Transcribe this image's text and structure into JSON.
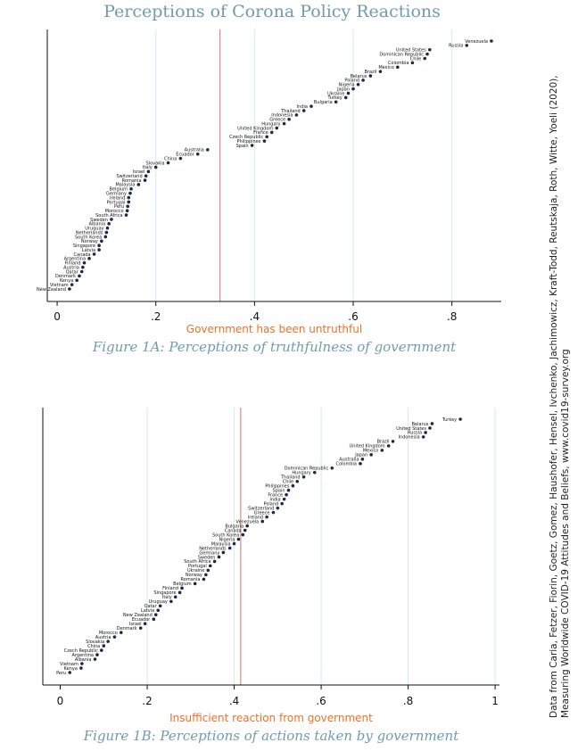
{
  "title": "Perceptions of Corona Policy Reactions",
  "source_line1": "Data from Caria, Fetzer, Fiorin, Goetz, Gomez, Haushofer, Hensel, Ivchenko, Jachimowicz, Kraft-Todd, Reutskaja, Roth, Witte, Yoeli (2020),",
  "source_line2": "Measuring Worldwide COVID-19 Attitudes and Beliefs, www.covid19-survey.org",
  "chart_data": [
    {
      "type": "scatter",
      "caption": "Figure 1A: Perceptions of truthfulness of government",
      "xlabel": "Government has been untruthful",
      "xlim": [
        -0.02,
        0.9
      ],
      "xticks": [
        0,
        0.2,
        0.4,
        0.6,
        0.8
      ],
      "xtick_labels": [
        "0",
        ".2",
        ".4",
        ".6",
        ".8"
      ],
      "reference_line": 0.33,
      "grid": "vertical",
      "points": [
        {
          "label": "Venezuela",
          "x": 0.88
        },
        {
          "label": "Russia",
          "x": 0.83
        },
        {
          "label": "United States",
          "x": 0.755
        },
        {
          "label": "Dominican Republic",
          "x": 0.75
        },
        {
          "label": "Chile",
          "x": 0.745
        },
        {
          "label": "Colombia",
          "x": 0.72
        },
        {
          "label": "Mexico",
          "x": 0.69
        },
        {
          "label": "Brazil",
          "x": 0.655
        },
        {
          "label": "Belarus",
          "x": 0.635
        },
        {
          "label": "Poland",
          "x": 0.62
        },
        {
          "label": "Nigeria",
          "x": 0.61
        },
        {
          "label": "Japan",
          "x": 0.6
        },
        {
          "label": "Ukraine",
          "x": 0.59
        },
        {
          "label": "Turkey",
          "x": 0.585
        },
        {
          "label": "Bulgaria",
          "x": 0.565
        },
        {
          "label": "India",
          "x": 0.515
        },
        {
          "label": "Thailand",
          "x": 0.5
        },
        {
          "label": "Indonesia",
          "x": 0.485
        },
        {
          "label": "Greece",
          "x": 0.47
        },
        {
          "label": "Hungary",
          "x": 0.46
        },
        {
          "label": "United Kingdom",
          "x": 0.445
        },
        {
          "label": "France",
          "x": 0.435
        },
        {
          "label": "Czech Republic",
          "x": 0.425
        },
        {
          "label": "Philippines",
          "x": 0.42
        },
        {
          "label": "Spain",
          "x": 0.395
        },
        {
          "label": "Australia",
          "x": 0.305
        },
        {
          "label": "Ecuador",
          "x": 0.285
        },
        {
          "label": "China",
          "x": 0.25
        },
        {
          "label": "Slovakia",
          "x": 0.225
        },
        {
          "label": "Italy",
          "x": 0.2
        },
        {
          "label": "Israel",
          "x": 0.185
        },
        {
          "label": "Switzerland",
          "x": 0.18
        },
        {
          "label": "Romania",
          "x": 0.178
        },
        {
          "label": "Malaysia",
          "x": 0.165
        },
        {
          "label": "Belgium",
          "x": 0.15
        },
        {
          "label": "Germany",
          "x": 0.148
        },
        {
          "label": "Ireland",
          "x": 0.145
        },
        {
          "label": "Portugal",
          "x": 0.145
        },
        {
          "label": "Peru",
          "x": 0.143
        },
        {
          "label": "Morocco",
          "x": 0.142
        },
        {
          "label": "South Africa",
          "x": 0.14
        },
        {
          "label": "Sweden",
          "x": 0.11
        },
        {
          "label": "Albania",
          "x": 0.105
        },
        {
          "label": "Uruguay",
          "x": 0.102
        },
        {
          "label": "Netherlands",
          "x": 0.1
        },
        {
          "label": "South Korea",
          "x": 0.098
        },
        {
          "label": "Norway",
          "x": 0.09
        },
        {
          "label": "Singapore",
          "x": 0.085
        },
        {
          "label": "Latvia",
          "x": 0.085
        },
        {
          "label": "Canada",
          "x": 0.075
        },
        {
          "label": "Argentina",
          "x": 0.065
        },
        {
          "label": "Finland",
          "x": 0.055
        },
        {
          "label": "Austria",
          "x": 0.052
        },
        {
          "label": "Qatar",
          "x": 0.05
        },
        {
          "label": "Denmark",
          "x": 0.045
        },
        {
          "label": "Kenya",
          "x": 0.04
        },
        {
          "label": "Vietnam",
          "x": 0.03
        },
        {
          "label": "New Zealand",
          "x": 0.025
        }
      ]
    },
    {
      "type": "scatter",
      "caption": "Figure 1B: Perceptions of actions taken by government",
      "xlabel": "Insufficient reaction from government",
      "xlim": [
        -0.04,
        1.01
      ],
      "xticks": [
        0,
        0.2,
        0.4,
        0.6,
        0.8,
        1
      ],
      "xtick_labels": [
        "0",
        ".2",
        ".4",
        ".6",
        ".8",
        "1"
      ],
      "reference_line": 0.415,
      "grid": "vertical",
      "points": [
        {
          "label": "Turkey",
          "x": 0.92
        },
        {
          "label": "Belarus",
          "x": 0.855
        },
        {
          "label": "United States",
          "x": 0.85
        },
        {
          "label": "Russia",
          "x": 0.84
        },
        {
          "label": "Indonesia",
          "x": 0.835
        },
        {
          "label": "Brazil",
          "x": 0.765
        },
        {
          "label": "United Kingdom",
          "x": 0.755
        },
        {
          "label": "Mexico",
          "x": 0.74
        },
        {
          "label": "Japan",
          "x": 0.715
        },
        {
          "label": "Australia",
          "x": 0.695
        },
        {
          "label": "Colombia",
          "x": 0.69
        },
        {
          "label": "Dominican Republic",
          "x": 0.625
        },
        {
          "label": "Hungary",
          "x": 0.585
        },
        {
          "label": "Thailand",
          "x": 0.56
        },
        {
          "label": "Chile",
          "x": 0.545
        },
        {
          "label": "Philippines",
          "x": 0.535
        },
        {
          "label": "Spain",
          "x": 0.525
        },
        {
          "label": "France",
          "x": 0.52
        },
        {
          "label": "India",
          "x": 0.515
        },
        {
          "label": "Poland",
          "x": 0.51
        },
        {
          "label": "Switzerland",
          "x": 0.5
        },
        {
          "label": "Greece",
          "x": 0.49
        },
        {
          "label": "Ireland",
          "x": 0.475
        },
        {
          "label": "Venezuela",
          "x": 0.465
        },
        {
          "label": "Bulgaria",
          "x": 0.43
        },
        {
          "label": "Canada",
          "x": 0.425
        },
        {
          "label": "South Korea",
          "x": 0.42
        },
        {
          "label": "Nigeria",
          "x": 0.41
        },
        {
          "label": "Malaysia",
          "x": 0.4
        },
        {
          "label": "Netherlands",
          "x": 0.39
        },
        {
          "label": "Germany",
          "x": 0.375
        },
        {
          "label": "Sweden",
          "x": 0.365
        },
        {
          "label": "South Africa",
          "x": 0.355
        },
        {
          "label": "Portugal",
          "x": 0.345
        },
        {
          "label": "Ukraine",
          "x": 0.34
        },
        {
          "label": "Norway",
          "x": 0.335
        },
        {
          "label": "Romania",
          "x": 0.33
        },
        {
          "label": "Belgium",
          "x": 0.31
        },
        {
          "label": "Finland",
          "x": 0.28
        },
        {
          "label": "Singapore",
          "x": 0.275
        },
        {
          "label": "Italy",
          "x": 0.265
        },
        {
          "label": "Uruguay",
          "x": 0.255
        },
        {
          "label": "Qatar",
          "x": 0.23
        },
        {
          "label": "Latvia",
          "x": 0.225
        },
        {
          "label": "New Zealand",
          "x": 0.22
        },
        {
          "label": "Ecuador",
          "x": 0.215
        },
        {
          "label": "Israel",
          "x": 0.195
        },
        {
          "label": "Denmark",
          "x": 0.185
        },
        {
          "label": "Morocco",
          "x": 0.14
        },
        {
          "label": "Austria",
          "x": 0.125
        },
        {
          "label": "Slovakia",
          "x": 0.11
        },
        {
          "label": "China",
          "x": 0.1
        },
        {
          "label": "Czech Republic",
          "x": 0.095
        },
        {
          "label": "Argentina",
          "x": 0.085
        },
        {
          "label": "Albania",
          "x": 0.08
        },
        {
          "label": "Vietnam",
          "x": 0.05
        },
        {
          "label": "Kenya",
          "x": 0.048
        },
        {
          "label": "Peru",
          "x": 0.022
        }
      ]
    }
  ]
}
